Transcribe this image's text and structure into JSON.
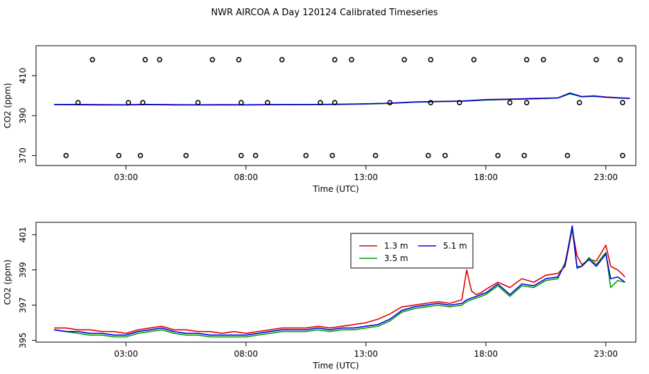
{
  "figure": {
    "title": "NWR AIRCOA A  Day 120124  Calibrated Timeseries"
  },
  "chart_data": [
    {
      "type": "line",
      "xlabel": "Time (UTC)",
      "ylabel": "CO2 (ppm)",
      "xlim": [
        -0.75,
        24.25
      ],
      "ylim": [
        365,
        425
      ],
      "xticks": [
        3,
        8,
        13,
        18,
        23
      ],
      "xtick_labels": [
        "03:00",
        "08:00",
        "13:00",
        "18:00",
        "23:00"
      ],
      "yticks": [
        370,
        390,
        410
      ],
      "ytick_labels": [
        "370",
        "390",
        "410"
      ],
      "grid": false,
      "legend": null,
      "series": [
        {
          "color": "#e00000",
          "x": [
            0,
            1,
            2,
            3,
            4,
            5,
            6,
            7,
            8,
            9,
            10,
            11,
            12,
            13,
            14,
            15,
            16,
            17,
            18,
            19,
            20,
            21,
            21.5,
            22,
            22.5,
            23,
            23.5,
            24
          ],
          "y": [
            395.6,
            395.6,
            395.5,
            395.4,
            395.6,
            395.5,
            395.4,
            395.5,
            395.4,
            395.5,
            395.6,
            395.6,
            395.7,
            395.9,
            396.2,
            396.8,
            397.1,
            397.3,
            398,
            398.3,
            398.6,
            398.9,
            401,
            399.5,
            399.9,
            399.3,
            399,
            398.7
          ]
        },
        {
          "color": "#00a000",
          "x": [
            0,
            1,
            2,
            3,
            4,
            5,
            6,
            7,
            8,
            9,
            10,
            11,
            12,
            13,
            14,
            15,
            16,
            17,
            18,
            19,
            20,
            21,
            21.5,
            22,
            22.5,
            23,
            23.5,
            24
          ],
          "y": [
            395.5,
            395.4,
            395.3,
            395.3,
            395.5,
            395.3,
            395.3,
            395.3,
            395.3,
            395.4,
            395.5,
            395.5,
            395.6,
            395.8,
            396.1,
            396.7,
            397,
            397.2,
            397.8,
            398.1,
            398.4,
            398.8,
            400.9,
            399.4,
            399.7,
            399.2,
            398.8,
            398.6
          ]
        },
        {
          "color": "#0000e0",
          "x": [
            0,
            1,
            2,
            3,
            4,
            5,
            6,
            7,
            8,
            9,
            10,
            11,
            12,
            13,
            14,
            15,
            16,
            17,
            18,
            19,
            20,
            21,
            21.5,
            22,
            22.5,
            23,
            23.5,
            24
          ],
          "y": [
            395.6,
            395.5,
            395.4,
            395.4,
            395.6,
            395.4,
            395.4,
            395.4,
            395.4,
            395.5,
            395.5,
            395.6,
            395.7,
            395.9,
            396.2,
            396.8,
            397,
            397.3,
            397.9,
            398.2,
            398.5,
            398.8,
            401.3,
            399.5,
            399.8,
            399.2,
            398.9,
            398.6
          ]
        }
      ],
      "markers": {
        "color": "#000000",
        "points": [
          {
            "x": 0.5,
            "y": 370
          },
          {
            "x": 1.0,
            "y": 396.5
          },
          {
            "x": 1.6,
            "y": 418
          },
          {
            "x": 2.7,
            "y": 370
          },
          {
            "x": 3.1,
            "y": 396.5
          },
          {
            "x": 3.6,
            "y": 370
          },
          {
            "x": 3.7,
            "y": 396.5
          },
          {
            "x": 3.8,
            "y": 418
          },
          {
            "x": 4.4,
            "y": 418
          },
          {
            "x": 5.5,
            "y": 370
          },
          {
            "x": 6.0,
            "y": 396.5
          },
          {
            "x": 6.6,
            "y": 418
          },
          {
            "x": 7.7,
            "y": 418
          },
          {
            "x": 7.8,
            "y": 396.5
          },
          {
            "x": 7.8,
            "y": 370
          },
          {
            "x": 8.4,
            "y": 370
          },
          {
            "x": 8.9,
            "y": 396.5
          },
          {
            "x": 9.5,
            "y": 418
          },
          {
            "x": 10.5,
            "y": 370
          },
          {
            "x": 11.1,
            "y": 396.5
          },
          {
            "x": 11.6,
            "y": 370
          },
          {
            "x": 11.7,
            "y": 396.5
          },
          {
            "x": 11.7,
            "y": 418
          },
          {
            "x": 12.4,
            "y": 418
          },
          {
            "x": 13.4,
            "y": 370
          },
          {
            "x": 14.0,
            "y": 396.5
          },
          {
            "x": 14.6,
            "y": 418
          },
          {
            "x": 15.6,
            "y": 370
          },
          {
            "x": 15.7,
            "y": 396.5
          },
          {
            "x": 15.7,
            "y": 418
          },
          {
            "x": 16.3,
            "y": 370
          },
          {
            "x": 16.9,
            "y": 396.5
          },
          {
            "x": 17.5,
            "y": 418
          },
          {
            "x": 18.5,
            "y": 370
          },
          {
            "x": 19.0,
            "y": 396.5
          },
          {
            "x": 19.6,
            "y": 370
          },
          {
            "x": 19.7,
            "y": 396.5
          },
          {
            "x": 19.7,
            "y": 418
          },
          {
            "x": 20.4,
            "y": 418
          },
          {
            "x": 21.4,
            "y": 370
          },
          {
            "x": 21.9,
            "y": 396.5
          },
          {
            "x": 22.6,
            "y": 418
          },
          {
            "x": 23.6,
            "y": 418
          },
          {
            "x": 23.7,
            "y": 396.5
          },
          {
            "x": 23.7,
            "y": 370
          }
        ]
      }
    },
    {
      "type": "line",
      "xlabel": "Time (UTC)",
      "ylabel": "CO2 (ppm)",
      "xlim": [
        -0.75,
        24.25
      ],
      "ylim": [
        394.9,
        401.7
      ],
      "xticks": [
        3,
        8,
        13,
        18,
        23
      ],
      "xtick_labels": [
        "03:00",
        "08:00",
        "13:00",
        "18:00",
        "23:00"
      ],
      "yticks": [
        395,
        397,
        399,
        401
      ],
      "ytick_labels": [
        "395",
        "397",
        "399",
        "401"
      ],
      "grid": false,
      "legend": "top-right (inside, near center)",
      "series": [
        {
          "name": "1.3 m",
          "color": "#e00000",
          "x": [
            0,
            0.5,
            1,
            1.5,
            2,
            2.5,
            3,
            3.5,
            4,
            4.5,
            5,
            5.5,
            6,
            6.5,
            7,
            7.5,
            8,
            8.5,
            9,
            9.5,
            10,
            10.5,
            11,
            11.5,
            12,
            12.5,
            13,
            13.5,
            14,
            14.5,
            15,
            15.5,
            16,
            16.5,
            17,
            17.2,
            17.4,
            17.6,
            17.8,
            18,
            18.5,
            19,
            19.5,
            20,
            20.5,
            21,
            21.3,
            21.6,
            21.8,
            22,
            22.3,
            22.6,
            23,
            23.2,
            23.5,
            23.8
          ],
          "y": [
            395.7,
            395.7,
            395.6,
            395.6,
            395.5,
            395.5,
            395.4,
            395.6,
            395.7,
            395.8,
            395.6,
            395.6,
            395.5,
            395.5,
            395.4,
            395.5,
            395.4,
            395.5,
            395.6,
            395.7,
            395.7,
            395.7,
            395.8,
            395.7,
            395.8,
            395.9,
            396.0,
            396.2,
            396.5,
            396.9,
            397.0,
            397.1,
            397.2,
            397.1,
            397.3,
            399.0,
            397.8,
            397.6,
            397.7,
            397.9,
            398.3,
            398.0,
            398.5,
            398.3,
            398.7,
            398.8,
            399.2,
            401.3,
            399.8,
            399.3,
            399.6,
            399.5,
            400.4,
            399.2,
            399.0,
            398.6
          ]
        },
        {
          "name": "3.5 m",
          "color": "#00a000",
          "x": [
            0,
            0.5,
            1,
            1.5,
            2,
            2.5,
            3,
            3.5,
            4,
            4.5,
            5,
            5.5,
            6,
            6.5,
            7,
            7.5,
            8,
            8.5,
            9,
            9.5,
            10,
            10.5,
            11,
            11.5,
            12,
            12.5,
            13,
            13.5,
            14,
            14.5,
            15,
            15.5,
            16,
            16.5,
            17,
            17.2,
            17.4,
            17.6,
            17.8,
            18,
            18.5,
            19,
            19.5,
            20,
            20.5,
            21,
            21.3,
            21.6,
            21.8,
            22,
            22.3,
            22.6,
            23,
            23.2,
            23.5,
            23.8
          ],
          "y": [
            395.6,
            395.5,
            395.4,
            395.3,
            395.3,
            395.2,
            395.2,
            395.4,
            395.5,
            395.6,
            395.4,
            395.3,
            395.3,
            395.2,
            395.2,
            395.2,
            395.2,
            395.3,
            395.4,
            395.5,
            395.5,
            395.5,
            395.6,
            395.5,
            395.6,
            395.6,
            395.7,
            395.8,
            396.1,
            396.6,
            396.8,
            396.9,
            397.0,
            396.9,
            397.0,
            397.2,
            397.3,
            397.4,
            397.5,
            397.6,
            398.1,
            397.5,
            398.1,
            398.0,
            398.4,
            398.5,
            399.4,
            401.3,
            399.2,
            399.2,
            399.7,
            399.3,
            400.0,
            398.0,
            398.4,
            398.3
          ]
        },
        {
          "name": "5.1 m",
          "color": "#0000e0",
          "x": [
            0,
            0.5,
            1,
            1.5,
            2,
            2.5,
            3,
            3.5,
            4,
            4.5,
            5,
            5.5,
            6,
            6.5,
            7,
            7.5,
            8,
            8.5,
            9,
            9.5,
            10,
            10.5,
            11,
            11.5,
            12,
            12.5,
            13,
            13.5,
            14,
            14.5,
            15,
            15.5,
            16,
            16.5,
            17,
            17.2,
            17.4,
            17.6,
            17.8,
            18,
            18.5,
            19,
            19.5,
            20,
            20.5,
            21,
            21.3,
            21.6,
            21.8,
            22,
            22.3,
            22.6,
            23,
            23.2,
            23.5,
            23.8
          ],
          "y": [
            395.6,
            395.5,
            395.5,
            395.4,
            395.4,
            395.3,
            395.3,
            395.5,
            395.6,
            395.7,
            395.5,
            395.4,
            395.4,
            395.3,
            395.3,
            395.3,
            395.3,
            395.4,
            395.5,
            395.6,
            395.6,
            395.6,
            395.7,
            395.6,
            395.7,
            395.7,
            395.8,
            395.9,
            396.2,
            396.7,
            396.9,
            397.0,
            397.1,
            397.0,
            397.1,
            397.3,
            397.4,
            397.5,
            397.6,
            397.7,
            398.2,
            397.6,
            398.2,
            398.1,
            398.5,
            398.6,
            399.3,
            401.5,
            399.1,
            399.2,
            399.6,
            399.2,
            399.9,
            398.5,
            398.6,
            398.3
          ]
        }
      ]
    }
  ]
}
